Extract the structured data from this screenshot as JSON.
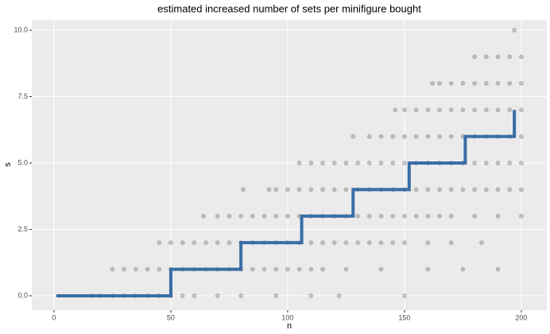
{
  "chart_data": {
    "type": "scatter",
    "title": "estimated increased number of sets per minifigure bought",
    "x_label": "n",
    "y_label": "s",
    "xlim": [
      -9.5,
      210.9
    ],
    "xticks": [
      0,
      50,
      100,
      150,
      200
    ],
    "ylim": [
      -0.54,
      10.39
    ],
    "yticks": [
      {
        "value": 0,
        "label": "0.0"
      },
      2.5,
      {
        "value": 5,
        "label": "5.0"
      },
      7.5,
      {
        "value": 10,
        "label": "10.0"
      }
    ],
    "grid": true,
    "panel_color": "#ebebeb",
    "series": [
      {
        "type": "scatter",
        "color": "#000000",
        "x": [
          16,
          20,
          25,
          30,
          35,
          40,
          45,
          50,
          55,
          60,
          70,
          80,
          95,
          110,
          122,
          150
        ],
        "values": [
          0,
          0,
          0,
          0,
          0,
          0,
          0,
          0,
          0,
          0,
          0,
          0,
          0,
          0,
          0,
          0
        ]
      },
      {
        "type": "scatter",
        "color": "#000000",
        "x": [
          25,
          30,
          35,
          40,
          45,
          50,
          55,
          60,
          65,
          70,
          75,
          80,
          85,
          90,
          95,
          100,
          105,
          110,
          115,
          125,
          140,
          160,
          175,
          190
        ],
        "values": [
          1,
          1,
          1,
          1,
          1,
          1,
          1,
          1,
          1,
          1,
          1,
          1,
          1,
          1,
          1,
          1,
          1,
          1,
          1,
          1,
          1,
          1,
          1,
          1
        ]
      },
      {
        "type": "scatter",
        "color": "#000000",
        "x": [
          45,
          50,
          55,
          60,
          65,
          70,
          75,
          80,
          85,
          90,
          95,
          100,
          105,
          110,
          115,
          120,
          125,
          130,
          135,
          140,
          145,
          150,
          160,
          170,
          183
        ],
        "values": [
          2,
          2,
          2,
          2,
          2,
          2,
          2,
          2,
          2,
          2,
          2,
          2,
          2,
          2,
          2,
          2,
          2,
          2,
          2,
          2,
          2,
          2,
          2,
          2,
          2
        ]
      },
      {
        "type": "scatter",
        "color": "#000000",
        "x": [
          64,
          70,
          75,
          80,
          85,
          90,
          95,
          100,
          105,
          110,
          115,
          120,
          125,
          130,
          135,
          140,
          145,
          150,
          155,
          160,
          165,
          170,
          180,
          190,
          200
        ],
        "values": [
          3,
          3,
          3,
          3,
          3,
          3,
          3,
          3,
          3,
          3,
          3,
          3,
          3,
          3,
          3,
          3,
          3,
          3,
          3,
          3,
          3,
          3,
          3,
          3,
          3
        ]
      },
      {
        "type": "scatter",
        "color": "#000000",
        "x": [
          81,
          92,
          95,
          100,
          105,
          110,
          115,
          120,
          125,
          130,
          135,
          140,
          145,
          150,
          155,
          160,
          165,
          170,
          175,
          180,
          185,
          190,
          195,
          200
        ],
        "values": [
          4,
          4,
          4,
          4,
          4,
          4,
          4,
          4,
          4,
          4,
          4,
          4,
          4,
          4,
          4,
          4,
          4,
          4,
          4,
          4,
          4,
          4,
          4,
          4
        ]
      },
      {
        "type": "scatter",
        "color": "#000000",
        "x": [
          105,
          110,
          115,
          120,
          125,
          130,
          135,
          140,
          145,
          150,
          155,
          160,
          165,
          170,
          175,
          180,
          185,
          190,
          195,
          200
        ],
        "values": [
          5,
          5,
          5,
          5,
          5,
          5,
          5,
          5,
          5,
          5,
          5,
          5,
          5,
          5,
          5,
          5,
          5,
          5,
          5,
          5
        ]
      },
      {
        "type": "scatter",
        "color": "#000000",
        "x": [
          128,
          135,
          140,
          145,
          150,
          155,
          160,
          165,
          170,
          175,
          180,
          185,
          190,
          195,
          200
        ],
        "values": [
          6,
          6,
          6,
          6,
          6,
          6,
          6,
          6,
          6,
          6,
          6,
          6,
          6,
          6,
          6
        ]
      },
      {
        "type": "scatter",
        "color": "#000000",
        "x": [
          146,
          150,
          155,
          160,
          165,
          170,
          175,
          180,
          185,
          190,
          195,
          200
        ],
        "values": [
          7,
          7,
          7,
          7,
          7,
          7,
          7,
          7,
          7,
          7,
          7,
          7
        ]
      },
      {
        "type": "scatter",
        "color": "#000000",
        "x": [
          162,
          165,
          170,
          175,
          180,
          185,
          190,
          195,
          200
        ],
        "values": [
          8,
          8,
          8,
          8,
          8,
          8,
          8,
          8,
          8
        ]
      },
      {
        "type": "scatter",
        "color": "#000000",
        "x": [
          180,
          185,
          190,
          195,
          200
        ],
        "values": [
          9,
          9,
          9,
          9,
          9
        ]
      },
      {
        "type": "scatter",
        "color": "#000000",
        "x": [
          197
        ],
        "values": [
          10
        ]
      },
      {
        "type": "line",
        "color": "#3a6ea5",
        "x": [
          1,
          50,
          50,
          80,
          80,
          106,
          106,
          128,
          128,
          152,
          152,
          176,
          176,
          197,
          197
        ],
        "values": [
          0,
          0,
          1,
          1,
          2,
          2,
          3,
          3,
          4,
          4,
          5,
          5,
          6,
          6,
          7
        ]
      }
    ]
  }
}
